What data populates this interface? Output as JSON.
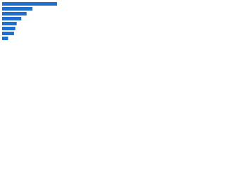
{
  "chart_data": {
    "type": "barh",
    "categories": [
      null,
      null,
      null,
      null,
      null,
      null,
      null,
      null
    ],
    "values": [
      83,
      46,
      37,
      29,
      22,
      20,
      18,
      9
    ],
    "color": "#1f6fd1",
    "xlim": [
      0,
      100
    ]
  }
}
